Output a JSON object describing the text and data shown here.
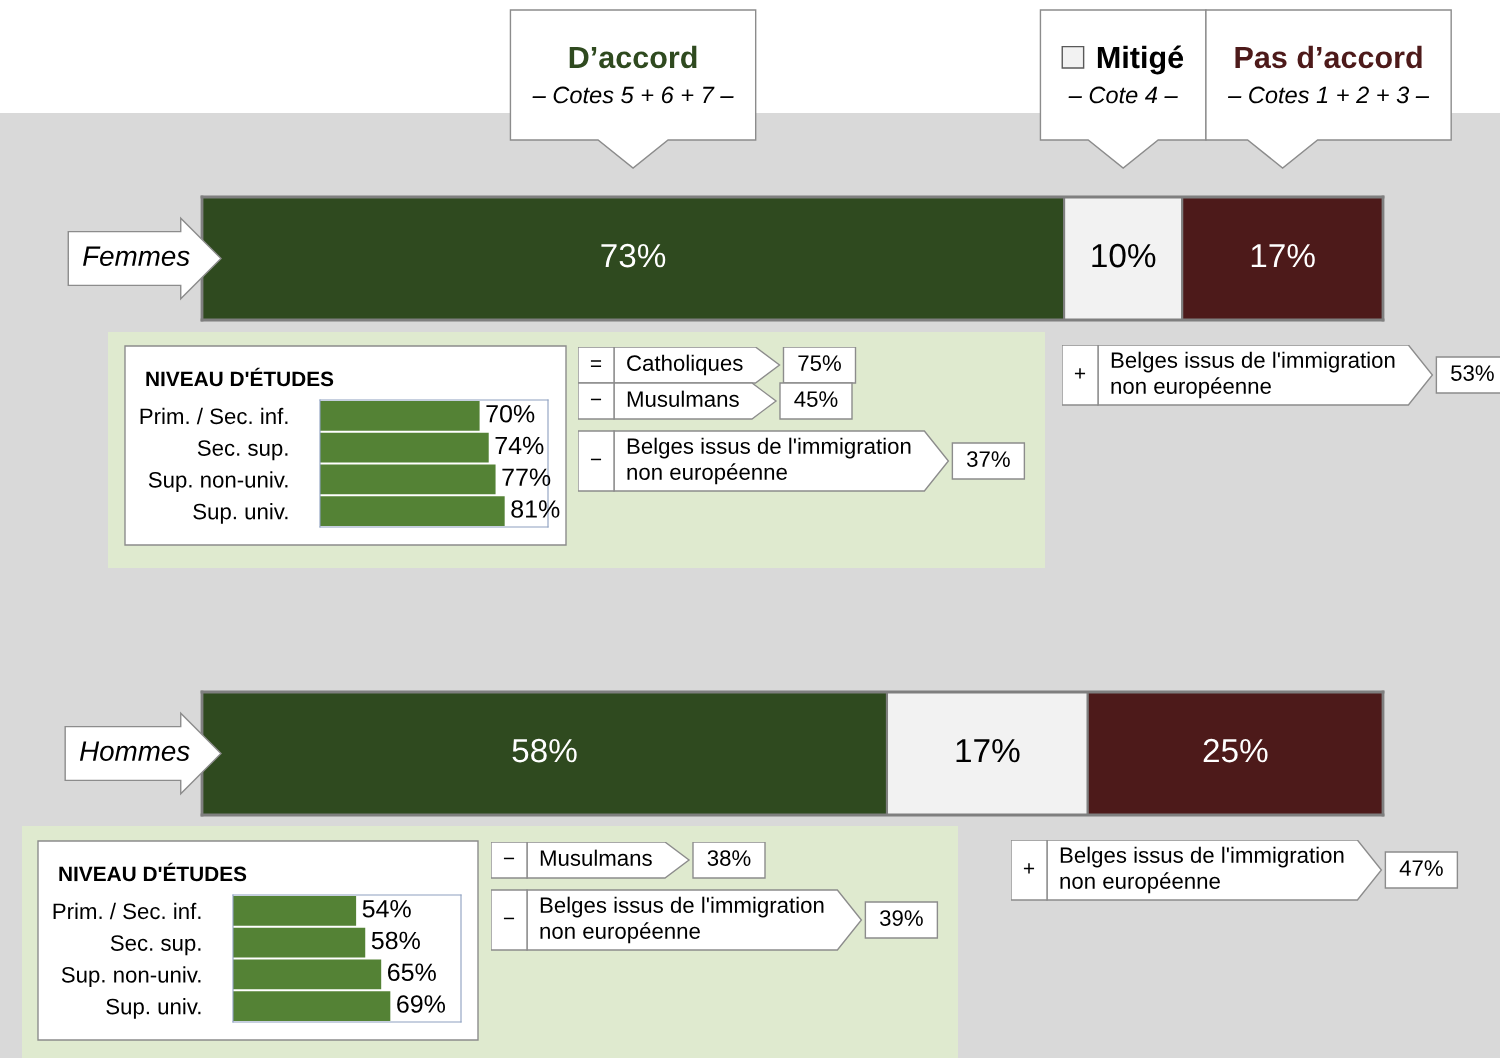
{
  "chart_data": [
    {
      "type": "bar",
      "orientation": "horizontal",
      "stacked": true,
      "categories": [
        "Femmes"
      ],
      "xlim": [
        0,
        100
      ],
      "tick_labels": "y",
      "legend": "top",
      "annotations": [
        "– Cotes 5 + 6 + 7 –",
        "– Cote 4 –",
        "– Cotes 1 + 2 + 3 –"
      ],
      "series": [
        {
          "name": "D’accord",
          "color": "#2f4a1f",
          "values": [
            73
          ],
          "value_labels": [
            "73%"
          ]
        },
        {
          "name": "Mitigé",
          "color": "#f2f2f2",
          "values": [
            10
          ],
          "value_labels": [
            "10%"
          ]
        },
        {
          "name": "Pas d’accord",
          "color": "#4d1a1a",
          "values": [
            17
          ],
          "value_labels": [
            "17%"
          ]
        }
      ]
    },
    {
      "type": "bar",
      "orientation": "horizontal",
      "title": "NIVEAU D'ÉTUDES",
      "categories": [
        "Prim. / Sec. inf.",
        "Sec. sup.",
        "Sup. non-univ.",
        "Sup. univ."
      ],
      "values": [
        70,
        74,
        77,
        81
      ],
      "value_labels": [
        "70%",
        "74%",
        "77%",
        "81%"
      ],
      "color": "#548235",
      "xlim": [
        0,
        100
      ],
      "tick_labels": "y"
    },
    {
      "type": "other",
      "categories": [
        "Catholiques",
        "Musulmans",
        "Belges issus de l'immigration\nnon européenne"
      ],
      "annotations": [
        "=",
        "−",
        "−"
      ],
      "value_labels": [
        "75%",
        "45%",
        "37%"
      ]
    },
    {
      "type": "other",
      "categories": [
        "Belges issus de l'immigration\nnon européenne"
      ],
      "annotations": [
        "+"
      ],
      "value_labels": [
        "53%"
      ]
    },
    {
      "type": "bar",
      "orientation": "horizontal",
      "stacked": true,
      "categories": [
        "Hommes"
      ],
      "xlim": [
        0,
        100
      ],
      "tick_labels": "y",
      "series": [
        {
          "color": "#2f4a1f",
          "values": [
            58
          ],
          "value_labels": [
            "58%"
          ]
        },
        {
          "color": "#f2f2f2",
          "values": [
            17
          ],
          "value_labels": [
            "17%"
          ]
        },
        {
          "color": "#4d1a1a",
          "values": [
            25
          ],
          "value_labels": [
            "25%"
          ]
        }
      ]
    },
    {
      "type": "bar",
      "orientation": "horizontal",
      "title": "NIVEAU D'ÉTUDES",
      "categories": [
        "Prim. / Sec. inf.",
        "Sec. sup.",
        "Sup. non-univ.",
        "Sup. univ."
      ],
      "values": [
        54,
        58,
        65,
        69
      ],
      "value_labels": [
        "54%",
        "58%",
        "65%",
        "69%"
      ],
      "color": "#548235",
      "xlim": [
        0,
        100
      ],
      "tick_labels": "y"
    },
    {
      "type": "other",
      "categories": [
        "Musulmans",
        "Belges issus de l'immigration\nnon européenne"
      ],
      "annotations": [
        "−",
        "−"
      ],
      "value_labels": [
        "38%",
        "39%"
      ]
    },
    {
      "type": "other",
      "categories": [
        "Belges issus de l'immigration\nnon européenne"
      ],
      "annotations": [
        "+"
      ],
      "value_labels": [
        "47%"
      ]
    }
  ]
}
